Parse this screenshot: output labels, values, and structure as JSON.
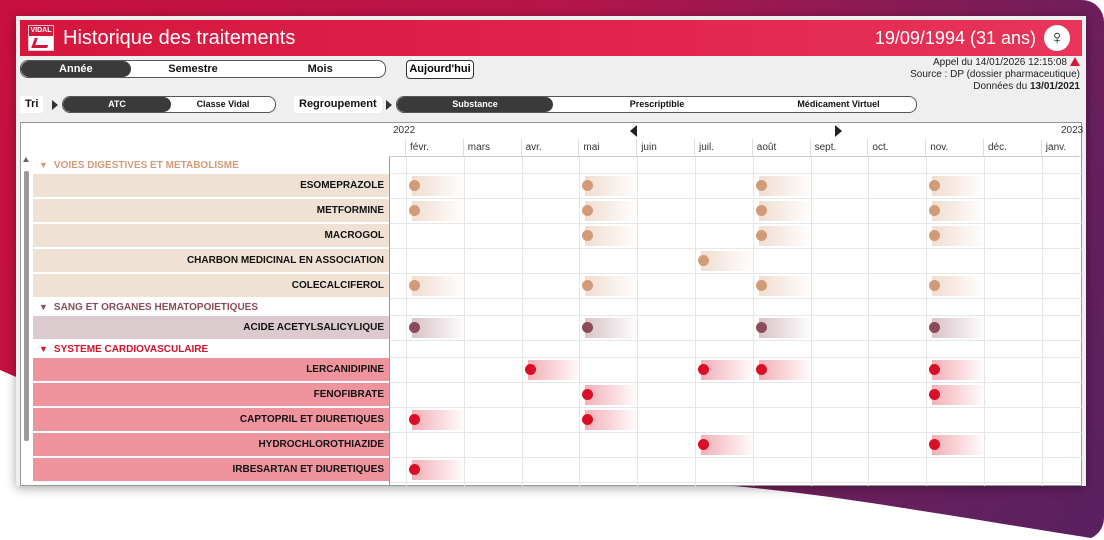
{
  "window": {
    "title": "Historique des traitements",
    "patient": "19/09/1994 (31 ans)",
    "gender_symbol": "♀",
    "logo_text": "VIDAL"
  },
  "period_toggle": [
    {
      "label": "Année",
      "active": true
    },
    {
      "label": "Semestre",
      "active": false
    },
    {
      "label": "Mois",
      "active": false
    }
  ],
  "today_button": "Aujourd'hui",
  "info": {
    "appel": "Appel du 14/01/2026 12:15:08",
    "source": "Source : DP (dossier pharmaceutique)",
    "donnees_prefix": "Données du ",
    "donnees_date": "13/01/2021"
  },
  "tri": {
    "label": "Tri",
    "options": [
      {
        "label": "ATC",
        "active": true
      },
      {
        "label": "Classe Vidal",
        "active": false
      }
    ]
  },
  "regroupement": {
    "label": "Regroupement",
    "options": [
      {
        "label": "Substance",
        "active": true
      },
      {
        "label": "Prescriptible",
        "active": false
      },
      {
        "label": "Médicament Virtuel",
        "active": false
      }
    ]
  },
  "timeline": {
    "year_start": "2022",
    "year_end": "2023",
    "months": [
      "févr.",
      "mars",
      "avr.",
      "mai",
      "juin",
      "juil.",
      "août",
      "sept.",
      "oct.",
      "nov.",
      "déc.",
      "janv."
    ]
  },
  "groups": [
    {
      "label": "VOIES DIGESTIVES ET METABOLISME",
      "color": "#d29b77",
      "row_bg": "#efe1d4",
      "drugs": [
        {
          "name": "ESOMEPRAZOLE",
          "events": [
            "févr.",
            "mai",
            "août",
            "nov."
          ]
        },
        {
          "name": "METFORMINE",
          "events": [
            "févr.",
            "mai",
            "août",
            "nov."
          ]
        },
        {
          "name": "MACROGOL",
          "events": [
            "mai",
            "août",
            "nov."
          ]
        },
        {
          "name": "CHARBON MEDICINAL EN ASSOCIATION",
          "events": [
            "juil."
          ]
        },
        {
          "name": "COLECALCIFEROL",
          "events": [
            "févr.",
            "mai",
            "août",
            "nov."
          ]
        }
      ]
    },
    {
      "label": "SANG ET ORGANES HEMATOPOIETIQUES",
      "color": "#8b4b5a",
      "row_bg": "#dccbce",
      "drugs": [
        {
          "name": "ACIDE ACETYLSALICYLIQUE",
          "events": [
            "févr.",
            "mai",
            "août",
            "nov."
          ]
        }
      ]
    },
    {
      "label": "SYSTEME CARDIOVASCULAIRE",
      "color": "#d90f27",
      "row_bg": "#ef949d",
      "drugs": [
        {
          "name": "LERCANIDIPINE",
          "events": [
            "avr.",
            "juil.",
            "août",
            "nov."
          ]
        },
        {
          "name": "FENOFIBRATE",
          "events": [
            "mai",
            "nov."
          ]
        },
        {
          "name": "CAPTOPRIL ET DIURETIQUES",
          "events": [
            "févr.",
            "mai"
          ]
        },
        {
          "name": "HYDROCHLOROTHIAZIDE",
          "events": [
            "juil.",
            "nov."
          ]
        },
        {
          "name": "IRBESARTAN ET DIURETIQUES",
          "events": [
            "févr."
          ]
        }
      ]
    }
  ]
}
